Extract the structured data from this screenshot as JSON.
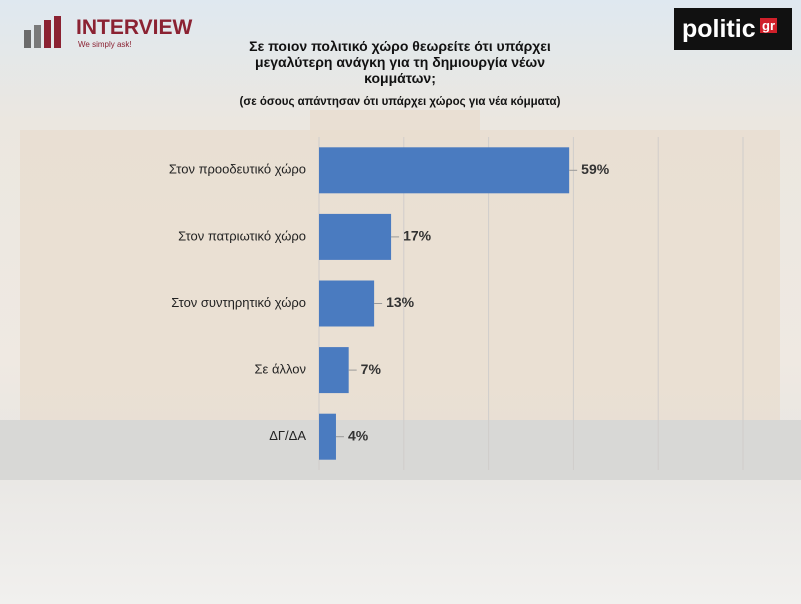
{
  "logo_left": {
    "name": "INTERVIEW",
    "tagline": "We simply ask!"
  },
  "logo_right": {
    "name": "politic",
    "suffix": "gr"
  },
  "chart_data": {
    "type": "bar",
    "title": "Σε ποιον πολιτικό χώρο θεωρείτε ότι υπάρχει μεγαλύτερη ανάγκη για τη δημιουργία νέων κομμάτων;",
    "subtitle": "(σε όσους απάντησαν ότι υπάρχει χώρος για νέα κόμματα)",
    "categories": [
      "Στον προοδευτικό χώρο",
      "Στον πατριωτικό χώρο",
      "Στον συντηρητικό χώρο",
      "Σε άλλον",
      "ΔΓ/ΔΑ"
    ],
    "values": [
      59,
      17,
      13,
      7,
      4
    ],
    "value_labels": [
      "59%",
      "17%",
      "13%",
      "7%",
      "4%"
    ],
    "color": "#4a7bc0",
    "xlim": [
      0,
      100
    ],
    "xticks": [
      0,
      20,
      40,
      60,
      80,
      100
    ],
    "grid": true
  }
}
